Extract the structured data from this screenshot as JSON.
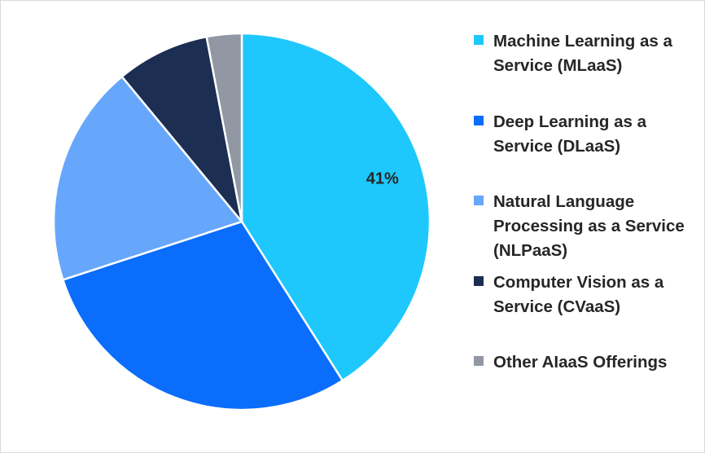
{
  "chart_data": {
    "type": "pie",
    "categories": [
      "Machine Learning as a Service (MLaaS)",
      "Deep Learning as a Service (DLaaS)",
      "Natural Language Processing as a Service (NLPaaS)",
      "Computer Vision as a Service (CVaaS)",
      "Other AIaaS Offerings"
    ],
    "values": [
      41,
      29,
      19,
      8,
      3
    ],
    "colors": [
      "#1ec8fd",
      "#0a6dfb",
      "#66a7fc",
      "#1c2e52",
      "#9198a3"
    ],
    "data_labels": [
      "41%",
      "",
      "",
      "",
      ""
    ],
    "start_angle_deg": 0,
    "direction": "clockwise",
    "legend_position": "right"
  }
}
